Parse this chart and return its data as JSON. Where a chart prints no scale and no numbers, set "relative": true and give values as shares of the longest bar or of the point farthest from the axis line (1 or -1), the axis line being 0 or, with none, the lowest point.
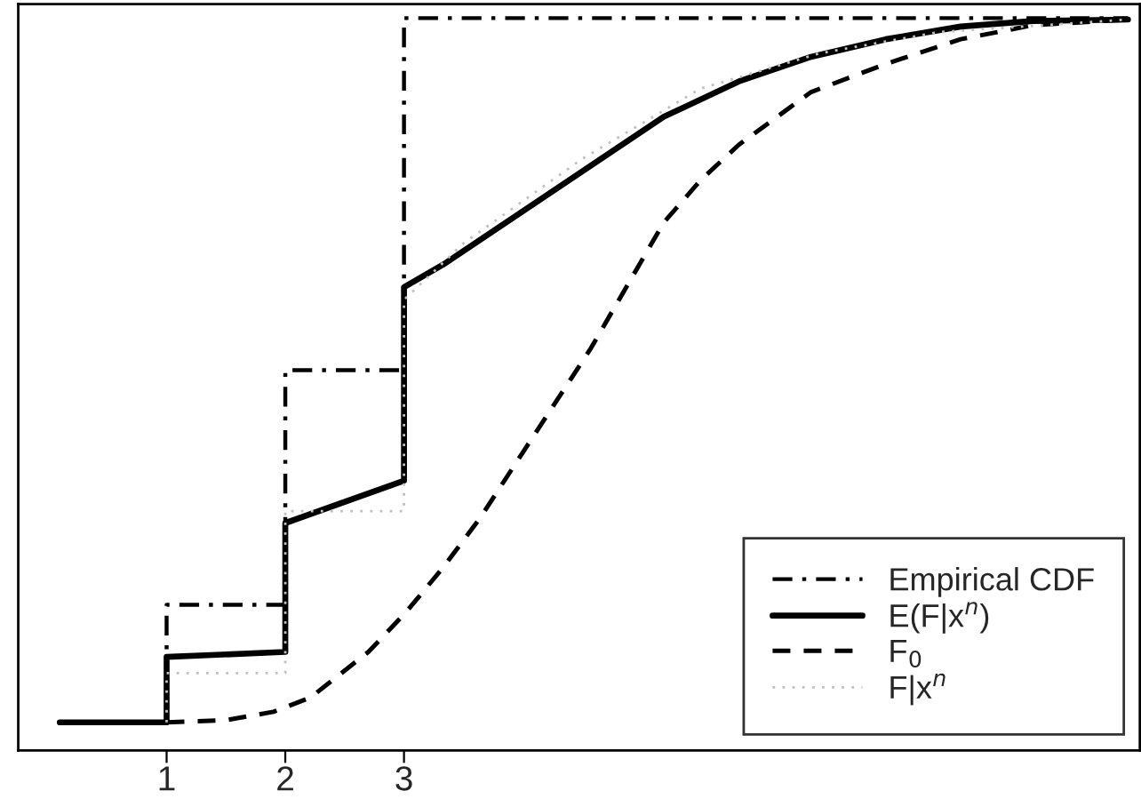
{
  "chart_data": {
    "type": "line",
    "relative": true,
    "legend": "bottom right",
    "grid": false,
    "xlim": [
      -0.25,
      9.2
    ],
    "xticks": [
      1,
      2,
      3
    ],
    "series": [
      {
        "name": "Empirical CDF",
        "color": "#000000",
        "line_style": "dashdot",
        "x": [
          1,
          1,
          2,
          2,
          3,
          3,
          9.1
        ],
        "values": [
          0,
          0.167,
          0.167,
          0.5,
          0.5,
          1,
          1
        ]
      },
      {
        "name": "E(F|x$^{n}$)",
        "color": "#000000",
        "line_style": "solid",
        "x": [
          0.1,
          1,
          1,
          2,
          2,
          3,
          3,
          3.33,
          3.95,
          4.57,
          5.19,
          5.82,
          6.43,
          7.06,
          7.69,
          8.3,
          9.1
        ],
        "values": [
          0,
          0,
          0.093,
          0.1,
          0.283,
          0.343,
          0.618,
          0.65,
          0.72,
          0.79,
          0.86,
          0.91,
          0.945,
          0.97,
          0.988,
          0.996,
          0.998
        ]
      },
      {
        "name": "F$_{0}$",
        "color": "#000000",
        "line_style": "dashed",
        "x": [
          1,
          1.5,
          1.9,
          2.21,
          2.7,
          3.01,
          3.33,
          3.64,
          3.95,
          4.26,
          4.57,
          4.88,
          5.19,
          5.5,
          5.82,
          6.43,
          7.06,
          7.69,
          8.3,
          9.1
        ],
        "values": [
          0,
          0.003,
          0.015,
          0.035,
          0.1,
          0.155,
          0.22,
          0.29,
          0.37,
          0.45,
          0.53,
          0.62,
          0.71,
          0.77,
          0.82,
          0.895,
          0.935,
          0.97,
          0.99,
          0.998
        ]
      },
      {
        "name": "F|x$^{n}$",
        "color": "#c0c0c0",
        "line_style": "dotted",
        "x": [
          1,
          1,
          2,
          2,
          3,
          3,
          3.5,
          4.5,
          5.5,
          6.5,
          7.5,
          9.1
        ],
        "values": [
          0,
          0.07,
          0.07,
          0.3,
          0.3,
          0.6,
          0.68,
          0.8,
          0.9,
          0.95,
          0.98,
          0.998
        ]
      }
    ]
  }
}
